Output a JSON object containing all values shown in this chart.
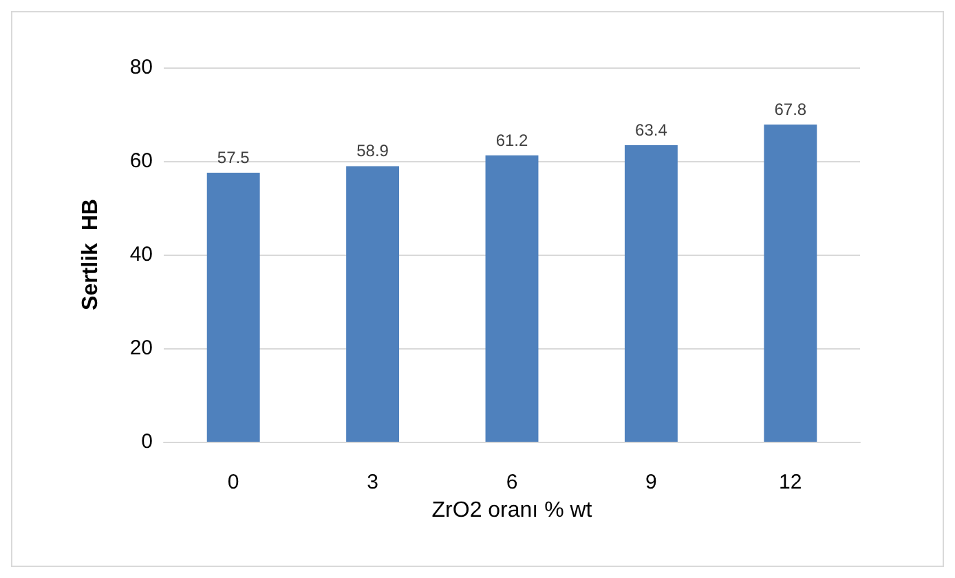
{
  "chart_data": {
    "type": "bar",
    "xlabel": "ZrO2 oranı % wt",
    "ylabel": "Sertlik  HB",
    "categories": [
      "0",
      "3",
      "6",
      "9",
      "12"
    ],
    "values": [
      57.5,
      58.9,
      61.2,
      63.4,
      67.8
    ],
    "color": "#4f81bd",
    "ylim": [
      0,
      80
    ],
    "yticks": [
      0,
      20,
      40,
      60,
      80
    ],
    "grid": "y",
    "data_labels": true
  }
}
